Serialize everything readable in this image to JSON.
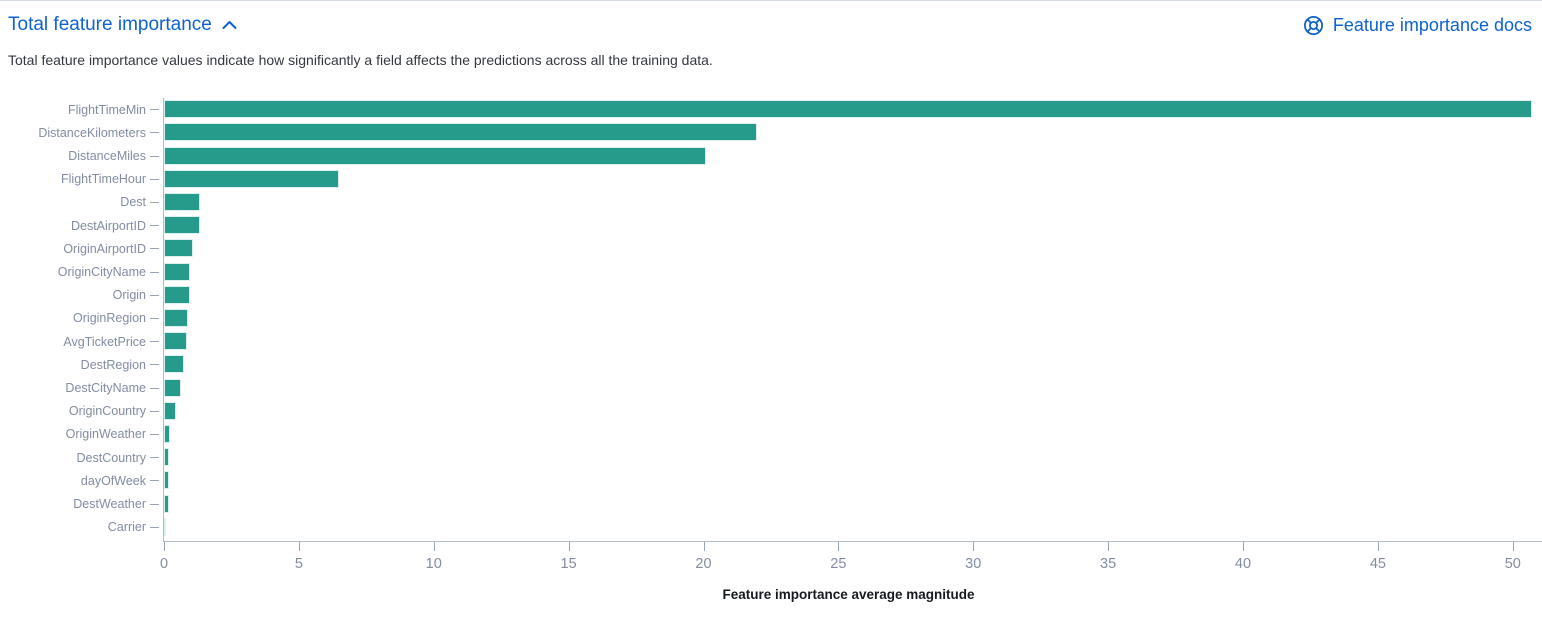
{
  "header": {
    "title": "Total feature importance",
    "docs_link_label": "Feature importance docs",
    "subtitle": "Total feature importance values indicate how significantly a field affects the predictions across all the training data."
  },
  "icons": {
    "collapse": "chevron-up-icon",
    "docs": "help-ring-icon"
  },
  "colors": {
    "accent_blue": "#0e62cf",
    "bar_teal": "#269a8b",
    "axis_line": "#b2bac8",
    "tick_mark": "#9aa3b5",
    "axis_label": "#828ca2",
    "subtitle_text": "#343741"
  },
  "chart_data": {
    "type": "bar",
    "orientation": "horizontal",
    "title": "",
    "xlabel": "Feature importance average magnitude",
    "ylabel": "",
    "xlim": [
      0,
      50.75
    ],
    "xticks": [
      0,
      5,
      10,
      15,
      20,
      25,
      30,
      35,
      40,
      45,
      50
    ],
    "grid": false,
    "legend": false,
    "categories": [
      "FlightTimeMin",
      "DistanceKilometers",
      "DistanceMiles",
      "FlightTimeHour",
      "Dest",
      "DestAirportID",
      "OriginAirportID",
      "OriginCityName",
      "Origin",
      "OriginRegion",
      "AvgTicketPrice",
      "DestRegion",
      "DestCityName",
      "OriginCountry",
      "OriginWeather",
      "DestCountry",
      "dayOfWeek",
      "DestWeather",
      "Carrier"
    ],
    "values": [
      50.7,
      22.0,
      20.1,
      6.5,
      1.34,
      1.32,
      1.07,
      0.97,
      0.95,
      0.89,
      0.85,
      0.74,
      0.63,
      0.43,
      0.21,
      0.2,
      0.2,
      0.17,
      0.07
    ]
  }
}
